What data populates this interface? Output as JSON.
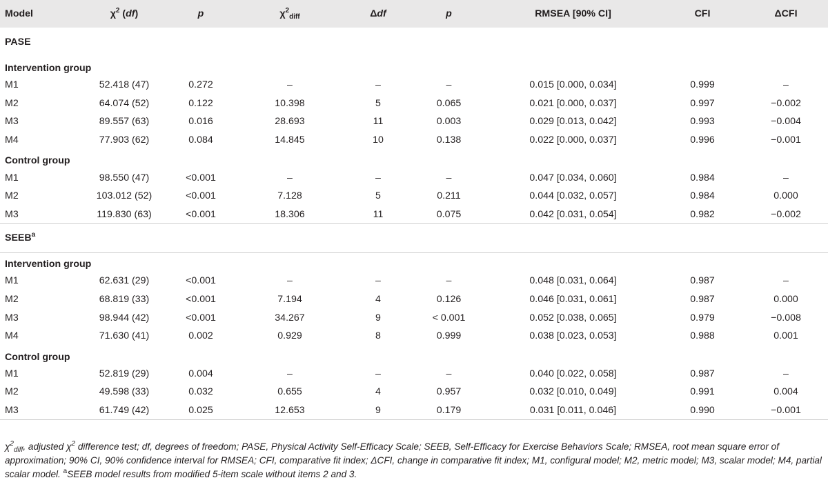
{
  "header": {
    "model": "Model",
    "chi2_symbol": "χ",
    "chi2_sup": "2",
    "df_paren": "df",
    "p": "p",
    "chi2diff_symbol": "χ",
    "chi2diff_sup": "2",
    "chi2diff_sub": "diff",
    "delta": "Δ",
    "delta_df": "df",
    "p2": "p",
    "rmsea": "RMSEA [90% CI]",
    "cfi": "CFI",
    "delta_cfi": "ΔCFI"
  },
  "sections": [
    {
      "name": "PASE",
      "name_sup": "",
      "groups": [
        {
          "name": "Intervention group",
          "rows": [
            {
              "model": "M1",
              "chi2": "52.418 (47)",
              "p": "0.272",
              "chi2diff": "–",
              "ddf": "–",
              "p2": "–",
              "rmsea": "0.015 [0.000, 0.034]",
              "cfi": "0.999",
              "dcfi": "–"
            },
            {
              "model": "M2",
              "chi2": "64.074 (52)",
              "p": "0.122",
              "chi2diff": "10.398",
              "ddf": "5",
              "p2": "0.065",
              "rmsea": "0.021 [0.000, 0.037]",
              "cfi": "0.997",
              "dcfi": "−0.002"
            },
            {
              "model": "M3",
              "chi2": "89.557 (63)",
              "p": "0.016",
              "chi2diff": "28.693",
              "ddf": "11",
              "p2": "0.003",
              "rmsea": "0.029 [0.013, 0.042]",
              "cfi": "0.993",
              "dcfi": "−0.004"
            },
            {
              "model": "M4",
              "chi2": "77.903 (62)",
              "p": "0.084",
              "chi2diff": "14.845",
              "ddf": "10",
              "p2": "0.138",
              "rmsea": "0.022 [0.000, 0.037]",
              "cfi": "0.996",
              "dcfi": "−0.001"
            }
          ]
        },
        {
          "name": "Control group",
          "rows": [
            {
              "model": "M1",
              "chi2": "98.550 (47)",
              "p": "<0.001",
              "chi2diff": "–",
              "ddf": "–",
              "p2": "–",
              "rmsea": "0.047 [0.034, 0.060]",
              "cfi": "0.984",
              "dcfi": "–"
            },
            {
              "model": "M2",
              "chi2": "103.012 (52)",
              "p": "<0.001",
              "chi2diff": "7.128",
              "ddf": "5",
              "p2": "0.211",
              "rmsea": "0.044 [0.032, 0.057]",
              "cfi": "0.984",
              "dcfi": "0.000"
            },
            {
              "model": "M3",
              "chi2": "119.830 (63)",
              "p": "<0.001",
              "chi2diff": "18.306",
              "ddf": "11",
              "p2": "0.075",
              "rmsea": "0.042 [0.031, 0.054]",
              "cfi": "0.982",
              "dcfi": "−0.002"
            }
          ]
        }
      ]
    },
    {
      "name": "SEEB",
      "name_sup": "a",
      "groups": [
        {
          "name": "Intervention group",
          "rows": [
            {
              "model": "M1",
              "chi2": "62.631 (29)",
              "p": "<0.001",
              "chi2diff": "–",
              "ddf": "–",
              "p2": "–",
              "rmsea": "0.048 [0.031, 0.064]",
              "cfi": "0.987",
              "dcfi": "–"
            },
            {
              "model": "M2",
              "chi2": "68.819 (33)",
              "p": "<0.001",
              "chi2diff": "7.194",
              "ddf": "4",
              "p2": "0.126",
              "rmsea": "0.046 [0.031, 0.061]",
              "cfi": "0.987",
              "dcfi": "0.000"
            },
            {
              "model": "M3",
              "chi2": "98.944 (42)",
              "p": "<0.001",
              "chi2diff": "34.267",
              "ddf": "9",
              "p2": "< 0.001",
              "rmsea": "0.052 [0.038, 0.065]",
              "cfi": "0.979",
              "dcfi": "−0.008"
            },
            {
              "model": "M4",
              "chi2": "71.630 (41)",
              "p": "0.002",
              "chi2diff": "0.929",
              "ddf": "8",
              "p2": "0.999",
              "rmsea": "0.038 [0.023, 0.053]",
              "cfi": "0.988",
              "dcfi": "0.001"
            }
          ]
        },
        {
          "name": "Control group",
          "rows": [
            {
              "model": "M1",
              "chi2": "52.819 (29)",
              "p": "0.004",
              "chi2diff": "–",
              "ddf": "–",
              "p2": "–",
              "rmsea": "0.040 [0.022, 0.058]",
              "cfi": "0.987",
              "dcfi": "–"
            },
            {
              "model": "M2",
              "chi2": "49.598 (33)",
              "p": "0.032",
              "chi2diff": "0.655",
              "ddf": "4",
              "p2": "0.957",
              "rmsea": "0.032 [0.010, 0.049]",
              "cfi": "0.991",
              "dcfi": "0.004"
            },
            {
              "model": "M3",
              "chi2": "61.749 (42)",
              "p": "0.025",
              "chi2diff": "12.653",
              "ddf": "9",
              "p2": "0.179",
              "rmsea": "0.031 [0.011, 0.046]",
              "cfi": "0.990",
              "dcfi": "−0.001"
            }
          ]
        }
      ]
    }
  ],
  "footnote": {
    "chi_symbol": "χ",
    "chi_sup": "2",
    "chi_sub": "diff",
    "part1": ", adjusted ",
    "chi2_symbol": "χ",
    "chi2_sup": "2",
    "part2": " difference test; df, degrees of freedom; PASE, Physical Activity Self-Efficacy Scale; SEEB, Self-Efficacy for Exercise Behaviors Scale; RMSEA, root mean square error of approximation; 90% CI, 90% confidence interval for RMSEA; CFI, comparative fit index; ΔCFI, change in comparative fit index; M1, configural model; M2, metric model; M3, scalar model; M4, partial scalar model. ",
    "note_sup": "a",
    "note_text": "SEEB model results from modified 5-item scale without items 2 and 3."
  }
}
